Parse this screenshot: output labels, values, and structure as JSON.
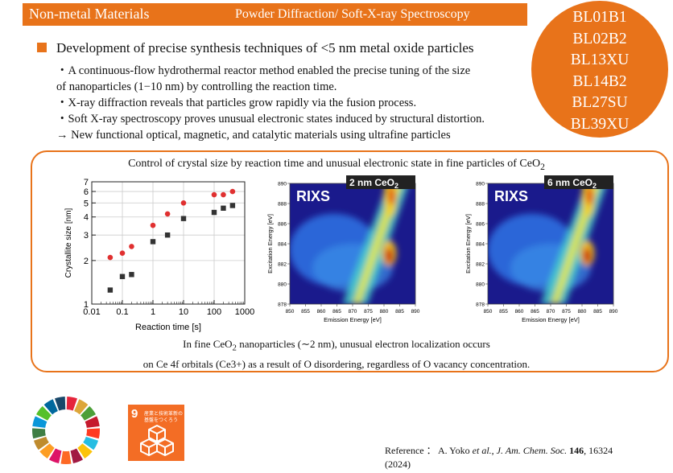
{
  "header": {
    "category": "Non-metal Materials",
    "topic": "Powder Diffraction/ Soft-X-ray Spectroscopy"
  },
  "beamlines": [
    "BL01B1",
    "BL02B2",
    "BL13XU",
    "BL14B2",
    "BL27SU",
    "BL39XU"
  ],
  "headline": "Development of precise synthesis techniques of <5 nm metal oxide particles",
  "points": [
    "・A continuous-flow hydrothermal reactor method enabled the precise tuning of the size",
    "of nanoparticles (1−10 nm) by controlling the reaction time.",
    "・X-ray diffraction reveals that particles grow rapidly via the fusion process.",
    "・Soft X-ray spectroscopy proves unusual electronic states induced by structural distortion.",
    "→ New functional optical, magnetic, and catalytic materials using ultrafine particles"
  ],
  "figure": {
    "title_main": "Control of crystal size by reaction time and unusual electronic state in fine particles of CeO",
    "title_sub": "2",
    "caption_l1_a": "In fine CeO",
    "caption_l1_sub": "2",
    "caption_l1_b": " nanoparticles (∼2 nm), unusual electron localization occurs",
    "caption_l2": "on Ce 4f orbitals (Ce3+) as a result of O disordering, regardless of O vacancy concentration."
  },
  "chart_data": {
    "type": "scatter",
    "xscale": "log",
    "yscale": "log",
    "xlim": [
      0.01,
      1000
    ],
    "ylim": [
      1,
      7
    ],
    "xlabel": "Reaction time [s]",
    "ylabel": "Crystallite size [nm]",
    "x_ticks": [
      "0.01",
      "0.1",
      "1",
      "10",
      "100",
      "1000"
    ],
    "y_ticks": [
      "1",
      "2",
      "3",
      "4",
      "5",
      "6",
      "7"
    ],
    "series": [
      {
        "marker": "circle",
        "color": "#e03030",
        "points": [
          [
            0.04,
            2.1
          ],
          [
            0.1,
            2.25
          ],
          [
            0.2,
            2.5
          ],
          [
            1,
            3.5
          ],
          [
            3,
            4.2
          ],
          [
            10,
            5.0
          ],
          [
            100,
            5.7
          ],
          [
            200,
            5.7
          ],
          [
            400,
            6.0
          ]
        ]
      },
      {
        "marker": "square",
        "color": "#333333",
        "points": [
          [
            0.04,
            1.25
          ],
          [
            0.1,
            1.55
          ],
          [
            0.2,
            1.6
          ],
          [
            1,
            2.7
          ],
          [
            3,
            3.0
          ],
          [
            10,
            3.9
          ],
          [
            100,
            4.3
          ],
          [
            200,
            4.6
          ],
          [
            400,
            4.8
          ]
        ]
      }
    ]
  },
  "rixs": [
    {
      "label": "RIXS",
      "tag_main": "2 nm CeO",
      "tag_sub": "2",
      "xlabel": "Emission Energy [eV]",
      "ylabel": "Excitation Energy [eV]",
      "x_ticks": [
        "850",
        "855",
        "860",
        "865",
        "870",
        "875",
        "880",
        "885",
        "890"
      ],
      "y_ticks": [
        "890",
        "888",
        "886",
        "884",
        "882",
        "880",
        "878"
      ]
    },
    {
      "label": "RIXS",
      "tag_main": "6 nm CeO",
      "tag_sub": "2",
      "xlabel": "Emission Energy [eV]",
      "ylabel": "Excitation Energy [eV]",
      "x_ticks": [
        "850",
        "855",
        "860",
        "865",
        "870",
        "875",
        "880",
        "885",
        "890"
      ],
      "y_ticks": [
        "890",
        "888",
        "886",
        "884",
        "882",
        "880",
        "878"
      ]
    }
  ],
  "sdg": {
    "number": "9",
    "jp_line1": "産業と技術革新の",
    "jp_line2": "基盤をつくろう"
  },
  "reference": {
    "prefix": "Reference ： A. Yoko ",
    "etal": "et al.",
    "sep": ", ",
    "journal": "J. Am. Chem. Soc.",
    "volume": " 146",
    "rest": ", 16324",
    "year": "(2024)"
  }
}
